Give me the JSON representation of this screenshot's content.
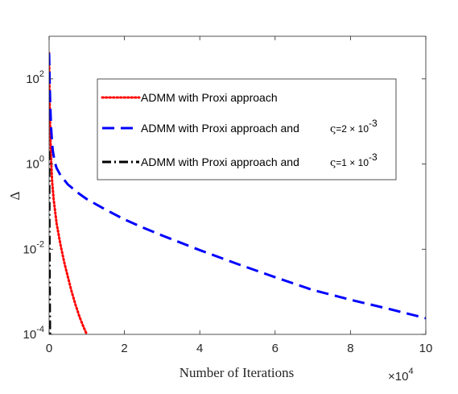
{
  "chart_data": {
    "type": "line",
    "xlabel": "Number of Iterations",
    "ylabel": "Δ",
    "x_multiplier": "×10",
    "x_multiplier_exp": "4",
    "xlim": [
      0,
      100000
    ],
    "ylim": [
      0.0001,
      1000
    ],
    "yscale": "log",
    "grid": false,
    "legend_position": "top-right",
    "x_ticks": [
      0,
      20000,
      40000,
      60000,
      80000,
      100000
    ],
    "x_tick_labels": [
      "0",
      "2",
      "4",
      "6",
      "8",
      "10"
    ],
    "y_ticks": [
      0.0001,
      0.01,
      1,
      100
    ],
    "y_tick_labels": [
      {
        "base": "10",
        "exp": "-4"
      },
      {
        "base": "10",
        "exp": "-2"
      },
      {
        "base": "10",
        "exp": "0"
      },
      {
        "base": "10",
        "exp": "2"
      }
    ],
    "series": [
      {
        "name": "ADMM with Proxi approach",
        "color": "#ff0000",
        "style": "dotted",
        "x": [
          0,
          100,
          200,
          350,
          500,
          800,
          1200,
          2000,
          3000,
          4000,
          5000,
          6000,
          7000,
          8000,
          9000,
          10000
        ],
        "y": [
          400,
          60,
          15,
          4,
          1.5,
          0.4,
          0.15,
          0.04,
          0.013,
          0.005,
          0.0022,
          0.001,
          0.0005,
          0.00027,
          0.00016,
          0.0001
        ]
      },
      {
        "name_parts": [
          "ADMM with Proxi approach and",
          "ς",
          "=2 × 10",
          "-3"
        ],
        "color": "#0000ff",
        "style": "dashed",
        "x": [
          0,
          150,
          300,
          500,
          800,
          1000,
          1500,
          2000,
          3000,
          5000,
          8000,
          10000,
          15000,
          20000,
          25000,
          30000,
          40000,
          50000,
          60000,
          70000,
          80000,
          90000,
          100000
        ],
        "y": [
          400,
          80,
          25,
          8,
          3,
          2,
          1.1,
          0.8,
          0.55,
          0.33,
          0.2,
          0.15,
          0.085,
          0.05,
          0.032,
          0.021,
          0.0095,
          0.0045,
          0.0022,
          0.0011,
          0.00065,
          0.0004,
          0.00024
        ]
      },
      {
        "name_parts": [
          "ADMM with Proxi approach and",
          "ς",
          "=1 × 10",
          "-3"
        ],
        "color": "#000000",
        "style": "dashdot",
        "x": [
          0,
          30,
          60,
          100,
          130,
          160,
          200,
          220
        ],
        "y": [
          2,
          1,
          0.1,
          0.01,
          0.002,
          0.0006,
          0.0002,
          0.0001
        ]
      }
    ]
  }
}
